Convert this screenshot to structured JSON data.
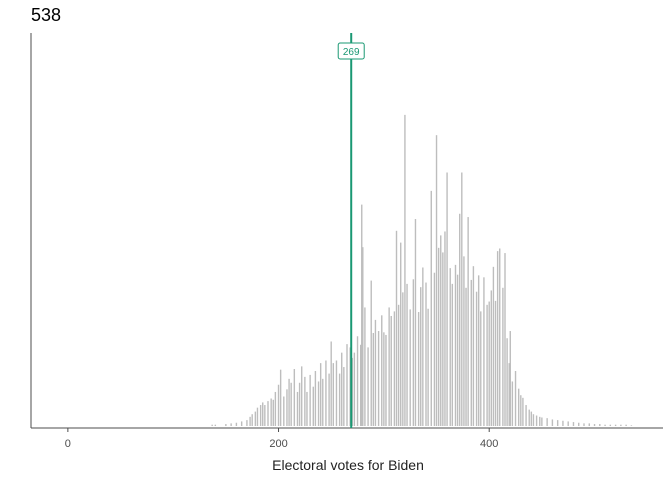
{
  "chart_data": {
    "type": "bar",
    "title": "538",
    "xlabel": "Electoral votes for Biden",
    "ylabel": "",
    "xlim": [
      -35,
      565
    ],
    "x_ticks": [
      0,
      200,
      400
    ],
    "grid": false,
    "colors": {
      "bars": "#bdbdbd",
      "reference": "#1a9873",
      "axis": "#4d4d4d"
    },
    "reference_line": {
      "x": 269,
      "label": "269"
    },
    "x": [
      137,
      140,
      150,
      155,
      160,
      165,
      170,
      173,
      175,
      178,
      180,
      183,
      185,
      187,
      190,
      193,
      195,
      197,
      200,
      202,
      205,
      208,
      210,
      212,
      215,
      218,
      220,
      222,
      225,
      227,
      230,
      233,
      235,
      238,
      240,
      242,
      245,
      248,
      250,
      252,
      255,
      258,
      260,
      262,
      265,
      268,
      270,
      272,
      275,
      278,
      279,
      280,
      282,
      285,
      288,
      290,
      292,
      295,
      298,
      300,
      302,
      305,
      307,
      310,
      312,
      314,
      316,
      318,
      320,
      322,
      325,
      328,
      330,
      333,
      335,
      337,
      340,
      342,
      345,
      348,
      350,
      352,
      354,
      356,
      358,
      360,
      363,
      365,
      368,
      370,
      372,
      374,
      376,
      378,
      380,
      383,
      385,
      388,
      390,
      392,
      395,
      398,
      400,
      402,
      404,
      406,
      408,
      410,
      413,
      415,
      417,
      419,
      420,
      422,
      425,
      428,
      430,
      432,
      435,
      438,
      440,
      442,
      445,
      448,
      450,
      455,
      460,
      465,
      470,
      475,
      480,
      485,
      490,
      495,
      500,
      505,
      510,
      515,
      520,
      525,
      530,
      535
    ],
    "values": [
      0.2,
      0.2,
      0.3,
      0.4,
      0.5,
      0.7,
      0.9,
      1.4,
      1.8,
      2.2,
      2.8,
      3.2,
      3.6,
      3.2,
      3.8,
      4.2,
      4.0,
      5.2,
      6.3,
      8.6,
      4.5,
      5.6,
      7.2,
      6.6,
      8.7,
      5.2,
      6.6,
      9.1,
      7.5,
      5.2,
      7.8,
      6.0,
      8.4,
      6.8,
      9.6,
      7.2,
      10.0,
      8.0,
      12.9,
      9.6,
      10.0,
      8.0,
      11.2,
      9.0,
      12.5,
      12.0,
      10.4,
      11.2,
      13.7,
      12.4,
      33.8,
      27.3,
      18.1,
      12.0,
      22.2,
      14.2,
      16.2,
      14.5,
      16.9,
      14.3,
      13.9,
      18.1,
      16.8,
      17.5,
      29.8,
      18.5,
      28.0,
      20.4,
      47.5,
      21.7,
      17.8,
      22.4,
      31.6,
      17.4,
      21.2,
      24.2,
      21.9,
      17.9,
      35.9,
      23.4,
      44.4,
      27.2,
      29.1,
      26.5,
      29.7,
      38.7,
      24.1,
      21.7,
      24.6,
      23.1,
      32.4,
      38.7,
      25.9,
      21.1,
      31.9,
      22.3,
      24.4,
      20.5,
      23.0,
      17.5,
      22.7,
      18.5,
      19.0,
      20.7,
      24.3,
      19.1,
      26.7,
      27.1,
      21.1,
      26.4,
      13.4,
      9.6,
      14.5,
      6.8,
      8.4,
      5.7,
      4.7,
      4.3,
      3.2,
      2.5,
      2.2,
      1.8,
      1.6,
      1.4,
      1.3,
      1.2,
      1.0,
      0.9,
      0.8,
      0.7,
      0.6,
      0.5,
      0.4,
      0.4,
      0.3,
      0.3,
      0.2,
      0.2,
      0.2,
      0.2,
      0.2,
      0.1
    ]
  }
}
